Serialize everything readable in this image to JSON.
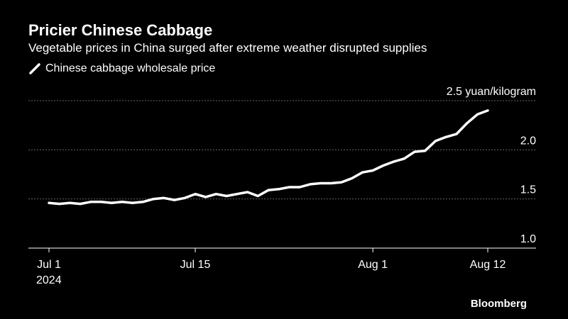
{
  "title": "Pricier Chinese Cabbage",
  "subtitle": "Vegetable prices in China surged after extreme weather disrupted supplies",
  "source": "Bloomberg",
  "colors": {
    "background": "#000000",
    "line": "#ffffff",
    "grid": "#666666",
    "text": "#ffffff"
  },
  "chart_data": {
    "type": "line",
    "legend_position": "top-left",
    "grid": true,
    "xlim": [
      "2024-07-01",
      "2024-08-12"
    ],
    "ylim": [
      1.0,
      2.5
    ],
    "y_ticks": [
      {
        "value": 2.5,
        "label": "2.5 yuan/kilogram"
      },
      {
        "value": 2.0,
        "label": "2.0"
      },
      {
        "value": 1.5,
        "label": "1.5"
      },
      {
        "value": 1.0,
        "label": "1.0"
      }
    ],
    "x_ticks": [
      {
        "date": "2024-07-01",
        "label": "Jul 1",
        "sublabel": "2024"
      },
      {
        "date": "2024-07-15",
        "label": "Jul 15",
        "sublabel": ""
      },
      {
        "date": "2024-08-01",
        "label": "Aug 1",
        "sublabel": ""
      },
      {
        "date": "2024-08-12",
        "label": "Aug 12",
        "sublabel": ""
      }
    ],
    "series": [
      {
        "name": "Chinese cabbage wholesale price",
        "color": "#ffffff",
        "points": [
          [
            "2024-07-01",
            1.46
          ],
          [
            "2024-07-02",
            1.45
          ],
          [
            "2024-07-03",
            1.46
          ],
          [
            "2024-07-04",
            1.45
          ],
          [
            "2024-07-05",
            1.47
          ],
          [
            "2024-07-06",
            1.47
          ],
          [
            "2024-07-07",
            1.46
          ],
          [
            "2024-07-08",
            1.47
          ],
          [
            "2024-07-09",
            1.46
          ],
          [
            "2024-07-10",
            1.47
          ],
          [
            "2024-07-11",
            1.5
          ],
          [
            "2024-07-12",
            1.51
          ],
          [
            "2024-07-13",
            1.49
          ],
          [
            "2024-07-14",
            1.51
          ],
          [
            "2024-07-15",
            1.55
          ],
          [
            "2024-07-16",
            1.52
          ],
          [
            "2024-07-17",
            1.55
          ],
          [
            "2024-07-18",
            1.53
          ],
          [
            "2024-07-19",
            1.55
          ],
          [
            "2024-07-20",
            1.57
          ],
          [
            "2024-07-21",
            1.53
          ],
          [
            "2024-07-22",
            1.59
          ],
          [
            "2024-07-23",
            1.6
          ],
          [
            "2024-07-24",
            1.62
          ],
          [
            "2024-07-25",
            1.62
          ],
          [
            "2024-07-26",
            1.65
          ],
          [
            "2024-07-27",
            1.66
          ],
          [
            "2024-07-28",
            1.66
          ],
          [
            "2024-07-29",
            1.67
          ],
          [
            "2024-07-30",
            1.71
          ],
          [
            "2024-07-31",
            1.77
          ],
          [
            "2024-08-01",
            1.79
          ],
          [
            "2024-08-02",
            1.84
          ],
          [
            "2024-08-03",
            1.88
          ],
          [
            "2024-08-04",
            1.91
          ],
          [
            "2024-08-05",
            1.98
          ],
          [
            "2024-08-06",
            1.99
          ],
          [
            "2024-08-07",
            2.09
          ],
          [
            "2024-08-08",
            2.13
          ],
          [
            "2024-08-09",
            2.16
          ],
          [
            "2024-08-10",
            2.27
          ],
          [
            "2024-08-11",
            2.36
          ],
          [
            "2024-08-12",
            2.4
          ]
        ]
      }
    ]
  }
}
